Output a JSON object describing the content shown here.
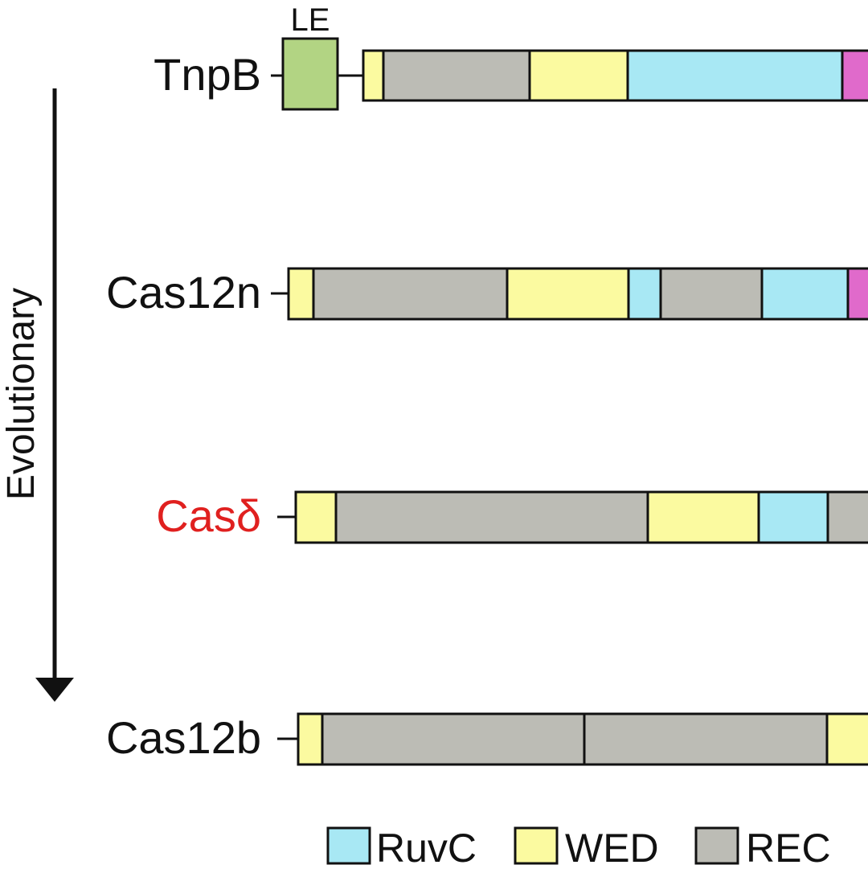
{
  "colors": {
    "ruvc": "#a8e8f4",
    "wed": "#fbfaa0",
    "rec": "#bcbcb5",
    "le": "#b2d483",
    "extra": "#e06acb",
    "highlight_label": "#e0201f",
    "stroke": "#111111"
  },
  "le_label": "LE",
  "axis_label": "Evolutionary",
  "proteins": [
    {
      "name": "TnpB",
      "highlight": false
    },
    {
      "name": "Cas12n",
      "highlight": false
    },
    {
      "name": "Casδ",
      "highlight": true
    },
    {
      "name": "Cas12b",
      "highlight": false
    }
  ],
  "legend": [
    {
      "label": "RuvC",
      "color_key": "ruvc"
    },
    {
      "label": "WED",
      "color_key": "wed"
    },
    {
      "label": "REC",
      "color_key": "rec"
    }
  ]
}
